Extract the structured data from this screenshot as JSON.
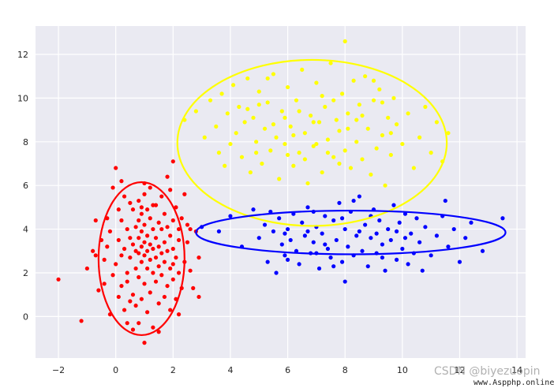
{
  "chart_data": {
    "type": "scatter",
    "title": "",
    "xlabel": "",
    "ylabel": "",
    "xlim": [
      -2.8,
      14.3
    ],
    "ylim": [
      -1.9,
      13.3
    ],
    "xticks": [
      -2,
      0,
      2,
      4,
      6,
      8,
      10,
      12,
      14
    ],
    "yticks": [
      0,
      2,
      4,
      6,
      8,
      10,
      12
    ],
    "grid": true,
    "background": "#eaeaf2",
    "series": [
      {
        "color": "#ff0000",
        "points": [
          [
            -2.0,
            1.7
          ],
          [
            -1.2,
            -0.2
          ],
          [
            -0.7,
            4.4
          ],
          [
            -0.5,
            3.5
          ],
          [
            -0.4,
            2.6
          ],
          [
            -0.3,
            3.2
          ],
          [
            -0.3,
            4.5
          ],
          [
            -0.2,
            3.9
          ],
          [
            -0.1,
            1.9
          ],
          [
            0.0,
            6.8
          ],
          [
            0.0,
            2.4
          ],
          [
            0.1,
            3.5
          ],
          [
            0.1,
            0.9
          ],
          [
            0.2,
            2.8
          ],
          [
            0.2,
            4.4
          ],
          [
            0.2,
            1.4
          ],
          [
            0.3,
            5.5
          ],
          [
            0.3,
            3.1
          ],
          [
            0.3,
            0.3
          ],
          [
            0.4,
            2.0
          ],
          [
            0.4,
            4.0
          ],
          [
            0.4,
            1.6
          ],
          [
            0.5,
            5.2
          ],
          [
            0.5,
            3.6
          ],
          [
            0.5,
            2.7
          ],
          [
            0.5,
            0.7
          ],
          [
            0.6,
            4.9
          ],
          [
            0.6,
            3.3
          ],
          [
            0.6,
            1.0
          ],
          [
            0.6,
            -0.6
          ],
          [
            0.7,
            4.1
          ],
          [
            0.7,
            3.0
          ],
          [
            0.7,
            2.2
          ],
          [
            0.7,
            0.5
          ],
          [
            0.8,
            5.3
          ],
          [
            0.8,
            4.4
          ],
          [
            0.8,
            3.6
          ],
          [
            0.8,
            2.9
          ],
          [
            0.8,
            1.8
          ],
          [
            0.8,
            -0.3
          ],
          [
            0.9,
            4.7
          ],
          [
            0.9,
            3.9
          ],
          [
            0.9,
            3.2
          ],
          [
            0.9,
            2.5
          ],
          [
            0.9,
            0.8
          ],
          [
            1.0,
            5.6
          ],
          [
            1.0,
            4.2
          ],
          [
            1.0,
            3.4
          ],
          [
            1.0,
            2.8
          ],
          [
            1.0,
            1.5
          ],
          [
            1.0,
            -1.2
          ],
          [
            1.1,
            4.9
          ],
          [
            1.1,
            3.7
          ],
          [
            1.1,
            3.0
          ],
          [
            1.1,
            2.2
          ],
          [
            1.1,
            0.2
          ],
          [
            1.2,
            5.9
          ],
          [
            1.2,
            4.5
          ],
          [
            1.2,
            3.3
          ],
          [
            1.2,
            2.6
          ],
          [
            1.2,
            1.1
          ],
          [
            1.3,
            4.0
          ],
          [
            1.3,
            3.1
          ],
          [
            1.3,
            2.0
          ],
          [
            1.3,
            -0.5
          ],
          [
            1.4,
            5.1
          ],
          [
            1.4,
            3.6
          ],
          [
            1.4,
            2.7
          ],
          [
            1.4,
            1.6
          ],
          [
            1.5,
            4.3
          ],
          [
            1.5,
            3.2
          ],
          [
            1.5,
            2.3
          ],
          [
            1.5,
            0.6
          ],
          [
            1.6,
            5.5
          ],
          [
            1.6,
            4.0
          ],
          [
            1.6,
            2.9
          ],
          [
            1.6,
            1.9
          ],
          [
            1.7,
            4.7
          ],
          [
            1.7,
            3.4
          ],
          [
            1.7,
            2.5
          ],
          [
            1.7,
            0.9
          ],
          [
            1.8,
            4.1
          ],
          [
            1.8,
            3.0
          ],
          [
            1.8,
            1.4
          ],
          [
            1.9,
            5.8
          ],
          [
            1.9,
            3.7
          ],
          [
            1.9,
            2.2
          ],
          [
            1.9,
            0.3
          ],
          [
            2.0,
            7.1
          ],
          [
            2.0,
            4.4
          ],
          [
            2.0,
            3.1
          ],
          [
            2.0,
            1.7
          ],
          [
            2.1,
            5.0
          ],
          [
            2.1,
            2.7
          ],
          [
            2.1,
            0.8
          ],
          [
            2.2,
            4.0
          ],
          [
            2.2,
            3.5
          ],
          [
            2.2,
            2.0
          ],
          [
            2.3,
            4.5
          ],
          [
            2.3,
            1.3
          ],
          [
            2.4,
            2.5
          ],
          [
            2.5,
            3.4
          ],
          [
            2.5,
            4.2
          ],
          [
            2.6,
            2.1
          ],
          [
            2.7,
            1.3
          ],
          [
            2.8,
            3.9
          ],
          [
            2.9,
            2.7
          ],
          [
            -0.6,
            1.2
          ],
          [
            -0.8,
            3.0
          ],
          [
            0.1,
            4.9
          ],
          [
            -1.0,
            2.2
          ],
          [
            -0.1,
            5.9
          ],
          [
            2.4,
            5.6
          ],
          [
            2.6,
            4.0
          ],
          [
            2.9,
            0.9
          ],
          [
            1.0,
            6.1
          ],
          [
            2.2,
            0.1
          ],
          [
            -0.2,
            0.1
          ],
          [
            1.8,
            6.4
          ],
          [
            0.4,
            -0.3
          ],
          [
            1.3,
            5.1
          ],
          [
            0.2,
            6.2
          ],
          [
            2.0,
            2.4
          ],
          [
            -0.4,
            1.5
          ],
          [
            -0.7,
            2.8
          ],
          [
            1.5,
            -0.7
          ],
          [
            0.9,
            5.0
          ]
        ]
      },
      {
        "color": "#ffff00",
        "points": [
          [
            2.4,
            9.0
          ],
          [
            2.8,
            9.4
          ],
          [
            3.1,
            8.2
          ],
          [
            3.3,
            9.9
          ],
          [
            3.5,
            8.7
          ],
          [
            3.6,
            7.5
          ],
          [
            3.7,
            10.2
          ],
          [
            3.8,
            6.9
          ],
          [
            3.9,
            9.3
          ],
          [
            4.0,
            7.9
          ],
          [
            4.1,
            10.6
          ],
          [
            4.2,
            8.4
          ],
          [
            4.3,
            9.6
          ],
          [
            4.4,
            7.3
          ],
          [
            4.5,
            8.9
          ],
          [
            4.6,
            10.9
          ],
          [
            4.7,
            6.6
          ],
          [
            4.8,
            9.1
          ],
          [
            4.9,
            8.0
          ],
          [
            5.0,
            10.3
          ],
          [
            5.1,
            7.0
          ],
          [
            5.2,
            8.6
          ],
          [
            5.3,
            9.8
          ],
          [
            5.4,
            7.6
          ],
          [
            5.5,
            11.1
          ],
          [
            5.6,
            8.2
          ],
          [
            5.7,
            6.3
          ],
          [
            5.8,
            9.4
          ],
          [
            5.9,
            7.9
          ],
          [
            6.0,
            10.5
          ],
          [
            6.1,
            8.7
          ],
          [
            6.2,
            6.9
          ],
          [
            6.3,
            9.9
          ],
          [
            6.4,
            7.5
          ],
          [
            6.5,
            11.3
          ],
          [
            6.6,
            8.4
          ],
          [
            6.7,
            6.1
          ],
          [
            6.8,
            9.2
          ],
          [
            6.9,
            7.8
          ],
          [
            7.0,
            10.7
          ],
          [
            7.1,
            8.9
          ],
          [
            7.2,
            6.6
          ],
          [
            7.3,
            9.6
          ],
          [
            7.4,
            8.1
          ],
          [
            7.5,
            11.6
          ],
          [
            7.6,
            7.3
          ],
          [
            7.7,
            9.0
          ],
          [
            7.8,
            8.5
          ],
          [
            7.9,
            10.2
          ],
          [
            8.0,
            12.6
          ],
          [
            8.0,
            7.6
          ],
          [
            8.1,
            9.3
          ],
          [
            8.2,
            6.8
          ],
          [
            8.3,
            10.8
          ],
          [
            8.4,
            8.0
          ],
          [
            8.5,
            9.7
          ],
          [
            8.6,
            7.2
          ],
          [
            8.7,
            11.0
          ],
          [
            8.8,
            8.6
          ],
          [
            8.9,
            6.5
          ],
          [
            9.0,
            9.9
          ],
          [
            9.1,
            7.7
          ],
          [
            9.2,
            10.4
          ],
          [
            9.3,
            8.3
          ],
          [
            9.4,
            6.0
          ],
          [
            9.5,
            9.1
          ],
          [
            9.6,
            7.4
          ],
          [
            9.7,
            10.0
          ],
          [
            9.8,
            8.8
          ],
          [
            10.0,
            7.9
          ],
          [
            10.2,
            9.3
          ],
          [
            10.4,
            6.8
          ],
          [
            10.6,
            8.2
          ],
          [
            10.8,
            9.6
          ],
          [
            11.0,
            7.5
          ],
          [
            11.2,
            8.9
          ],
          [
            11.4,
            7.1
          ],
          [
            11.6,
            8.4
          ],
          [
            4.6,
            9.5
          ],
          [
            5.3,
            10.9
          ],
          [
            5.9,
            9.1
          ],
          [
            6.6,
            7.2
          ],
          [
            7.2,
            10.1
          ],
          [
            7.8,
            7.0
          ],
          [
            8.4,
            9.0
          ],
          [
            9.0,
            10.8
          ],
          [
            9.6,
            8.4
          ],
          [
            6.2,
            8.3
          ],
          [
            6.9,
            8.9
          ],
          [
            7.4,
            7.5
          ],
          [
            8.1,
            8.6
          ],
          [
            6.0,
            7.4
          ],
          [
            7.0,
            7.9
          ],
          [
            5.5,
            8.8
          ],
          [
            4.9,
            7.5
          ],
          [
            8.6,
            9.2
          ],
          [
            7.6,
            9.9
          ],
          [
            6.4,
            9.4
          ],
          [
            5.0,
            9.7
          ],
          [
            9.3,
            9.8
          ]
        ]
      },
      {
        "color": "#0000ff",
        "points": [
          [
            3.0,
            4.1
          ],
          [
            3.6,
            3.9
          ],
          [
            4.0,
            4.6
          ],
          [
            4.4,
            3.2
          ],
          [
            4.8,
            4.9
          ],
          [
            5.0,
            3.6
          ],
          [
            5.2,
            4.2
          ],
          [
            5.3,
            2.5
          ],
          [
            5.5,
            3.9
          ],
          [
            5.6,
            2.0
          ],
          [
            5.7,
            4.5
          ],
          [
            5.8,
            3.3
          ],
          [
            5.9,
            2.8
          ],
          [
            6.0,
            4.0
          ],
          [
            6.1,
            3.5
          ],
          [
            6.2,
            4.7
          ],
          [
            6.3,
            3.0
          ],
          [
            6.4,
            2.4
          ],
          [
            6.5,
            4.3
          ],
          [
            6.6,
            3.7
          ],
          [
            6.7,
            5.0
          ],
          [
            6.8,
            2.9
          ],
          [
            6.9,
            3.4
          ],
          [
            7.0,
            4.1
          ],
          [
            7.1,
            2.2
          ],
          [
            7.2,
            3.8
          ],
          [
            7.3,
            4.6
          ],
          [
            7.4,
            3.1
          ],
          [
            7.5,
            2.7
          ],
          [
            7.6,
            4.4
          ],
          [
            7.7,
            3.5
          ],
          [
            7.8,
            5.2
          ],
          [
            7.9,
            2.5
          ],
          [
            8.0,
            1.6
          ],
          [
            8.0,
            4.0
          ],
          [
            8.1,
            3.2
          ],
          [
            8.2,
            4.8
          ],
          [
            8.3,
            2.8
          ],
          [
            8.4,
            3.7
          ],
          [
            8.5,
            5.5
          ],
          [
            8.6,
            3.0
          ],
          [
            8.7,
            4.2
          ],
          [
            8.8,
            2.3
          ],
          [
            8.9,
            3.6
          ],
          [
            9.0,
            4.9
          ],
          [
            9.1,
            2.9
          ],
          [
            9.2,
            4.4
          ],
          [
            9.3,
            3.3
          ],
          [
            9.4,
            2.1
          ],
          [
            9.5,
            4.0
          ],
          [
            9.6,
            3.5
          ],
          [
            9.7,
            5.1
          ],
          [
            9.8,
            2.6
          ],
          [
            9.9,
            4.3
          ],
          [
            10.0,
            3.1
          ],
          [
            10.1,
            4.7
          ],
          [
            10.2,
            2.4
          ],
          [
            10.3,
            3.8
          ],
          [
            10.4,
            2.9
          ],
          [
            10.5,
            4.5
          ],
          [
            10.6,
            3.4
          ],
          [
            10.8,
            4.1
          ],
          [
            11.0,
            2.8
          ],
          [
            11.2,
            3.7
          ],
          [
            11.4,
            4.6
          ],
          [
            11.6,
            3.2
          ],
          [
            11.8,
            4.0
          ],
          [
            12.0,
            2.5
          ],
          [
            12.2,
            3.6
          ],
          [
            12.4,
            4.3
          ],
          [
            12.8,
            3.0
          ],
          [
            13.5,
            4.5
          ],
          [
            5.4,
            4.8
          ],
          [
            6.0,
            2.6
          ],
          [
            6.7,
            3.9
          ],
          [
            7.3,
            3.3
          ],
          [
            7.9,
            4.5
          ],
          [
            8.5,
            3.9
          ],
          [
            9.1,
            3.8
          ],
          [
            9.8,
            3.9
          ],
          [
            8.3,
            5.3
          ],
          [
            7.6,
            2.3
          ],
          [
            6.9,
            4.8
          ],
          [
            10.7,
            2.1
          ],
          [
            11.5,
            5.3
          ],
          [
            9.3,
            2.7
          ],
          [
            8.9,
            4.6
          ],
          [
            7.0,
            2.9
          ],
          [
            5.9,
            3.8
          ],
          [
            10.1,
            3.6
          ]
        ]
      }
    ],
    "ellipses": [
      {
        "color": "#ff0000",
        "cx": 0.9,
        "cy": 2.65,
        "rx": 1.5,
        "ry": 3.5
      },
      {
        "color": "#ffff00",
        "cx": 6.85,
        "cy": 7.95,
        "rx": 4.7,
        "ry": 3.8
      },
      {
        "color": "#0000ff",
        "cx": 8.2,
        "cy": 3.85,
        "rx": 5.4,
        "ry": 1.0
      }
    ]
  },
  "watermark": {
    "csdn": "CSDN @biyezuopin",
    "site": "www.Aspphp.online"
  }
}
